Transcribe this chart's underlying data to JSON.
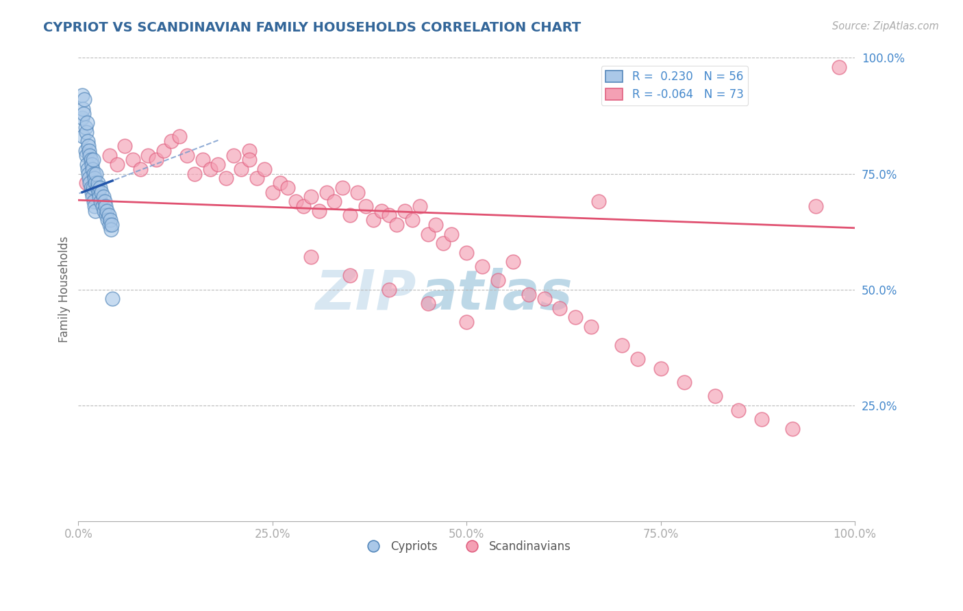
{
  "title": "CYPRIOT VS SCANDINAVIAN FAMILY HOUSEHOLDS CORRELATION CHART",
  "source_text": "Source: ZipAtlas.com",
  "ylabel": "Family Households",
  "xlim": [
    0,
    1.0
  ],
  "ylim": [
    0,
    1.0
  ],
  "watermark_zip": "ZIP",
  "watermark_atlas": "atlas",
  "legend_r1": "R =  0.230",
  "legend_n1": "N = 56",
  "legend_r2": "R = -0.064",
  "legend_n2": "N = 73",
  "cypriot_color": "#aac8e8",
  "scandinavian_color": "#f4a0b4",
  "cypriot_edge": "#5588bb",
  "scandinavian_edge": "#e06080",
  "trend_blue_solid": "#2255aa",
  "trend_blue_dashed": "#7799cc",
  "trend_pink": "#e05070",
  "background": "#ffffff",
  "grid_color": "#bbbbbb",
  "title_color": "#336699",
  "axis_label_color": "#4488cc",
  "ylabel_color": "#666666",
  "cypriot_x": [
    0.005,
    0.005,
    0.006,
    0.006,
    0.007,
    0.008,
    0.009,
    0.009,
    0.01,
    0.01,
    0.011,
    0.011,
    0.012,
    0.012,
    0.013,
    0.013,
    0.014,
    0.014,
    0.015,
    0.015,
    0.016,
    0.016,
    0.017,
    0.017,
    0.018,
    0.018,
    0.019,
    0.019,
    0.02,
    0.02,
    0.021,
    0.021,
    0.022,
    0.022,
    0.023,
    0.024,
    0.025,
    0.026,
    0.027,
    0.028,
    0.029,
    0.03,
    0.031,
    0.032,
    0.033,
    0.034,
    0.035,
    0.036,
    0.037,
    0.038,
    0.039,
    0.04,
    0.041,
    0.042,
    0.043,
    0.044
  ],
  "cypriot_y": [
    0.87,
    0.92,
    0.89,
    0.83,
    0.88,
    0.91,
    0.85,
    0.8,
    0.84,
    0.79,
    0.86,
    0.77,
    0.82,
    0.76,
    0.81,
    0.75,
    0.8,
    0.74,
    0.79,
    0.73,
    0.78,
    0.72,
    0.77,
    0.71,
    0.76,
    0.7,
    0.78,
    0.72,
    0.75,
    0.69,
    0.74,
    0.68,
    0.73,
    0.67,
    0.75,
    0.72,
    0.73,
    0.71,
    0.7,
    0.72,
    0.69,
    0.71,
    0.68,
    0.7,
    0.67,
    0.69,
    0.68,
    0.66,
    0.67,
    0.65,
    0.66,
    0.64,
    0.65,
    0.63,
    0.64,
    0.48
  ],
  "scandinavian_x": [
    0.01,
    0.02,
    0.04,
    0.05,
    0.06,
    0.07,
    0.08,
    0.09,
    0.1,
    0.11,
    0.12,
    0.13,
    0.14,
    0.15,
    0.16,
    0.17,
    0.18,
    0.19,
    0.2,
    0.21,
    0.22,
    0.22,
    0.23,
    0.24,
    0.25,
    0.26,
    0.27,
    0.28,
    0.29,
    0.3,
    0.31,
    0.32,
    0.33,
    0.34,
    0.35,
    0.36,
    0.37,
    0.38,
    0.39,
    0.4,
    0.41,
    0.42,
    0.43,
    0.44,
    0.45,
    0.46,
    0.47,
    0.48,
    0.5,
    0.52,
    0.54,
    0.56,
    0.58,
    0.6,
    0.62,
    0.64,
    0.66,
    0.67,
    0.7,
    0.72,
    0.75,
    0.78,
    0.82,
    0.85,
    0.88,
    0.92,
    0.95,
    0.98,
    0.3,
    0.35,
    0.4,
    0.45,
    0.5
  ],
  "scandinavian_y": [
    0.73,
    0.71,
    0.79,
    0.77,
    0.81,
    0.78,
    0.76,
    0.79,
    0.78,
    0.8,
    0.82,
    0.83,
    0.79,
    0.75,
    0.78,
    0.76,
    0.77,
    0.74,
    0.79,
    0.76,
    0.8,
    0.78,
    0.74,
    0.76,
    0.71,
    0.73,
    0.72,
    0.69,
    0.68,
    0.7,
    0.67,
    0.71,
    0.69,
    0.72,
    0.66,
    0.71,
    0.68,
    0.65,
    0.67,
    0.66,
    0.64,
    0.67,
    0.65,
    0.68,
    0.62,
    0.64,
    0.6,
    0.62,
    0.58,
    0.55,
    0.52,
    0.56,
    0.49,
    0.48,
    0.46,
    0.44,
    0.42,
    0.69,
    0.38,
    0.35,
    0.33,
    0.3,
    0.27,
    0.24,
    0.22,
    0.2,
    0.68,
    0.98,
    0.57,
    0.53,
    0.5,
    0.47,
    0.43
  ],
  "blue_trend_x0": 0.005,
  "blue_trend_y0": 0.71,
  "blue_trend_x1": 0.044,
  "blue_trend_y1": 0.735,
  "pink_trend_x0": 0.0,
  "pink_trend_y0": 0.693,
  "pink_trend_x1": 1.0,
  "pink_trend_y1": 0.633
}
